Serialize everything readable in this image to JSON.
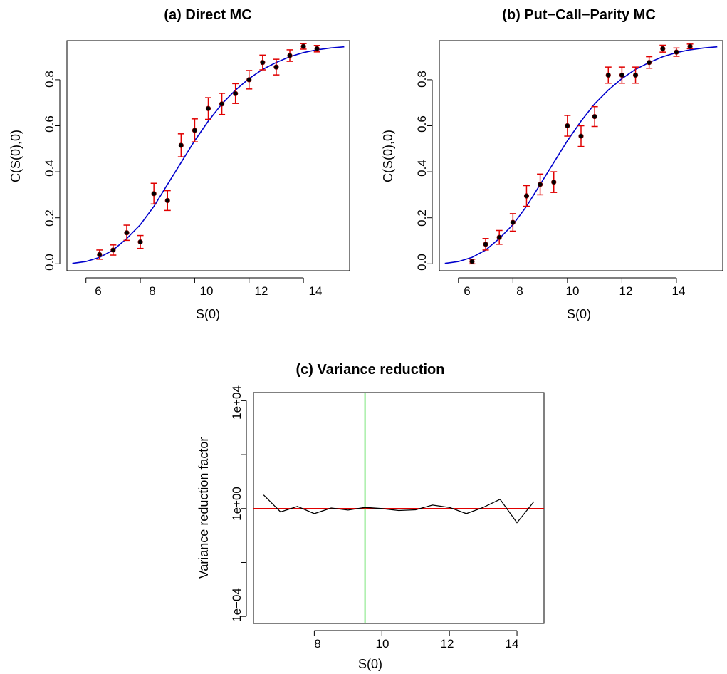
{
  "chart_data": [
    {
      "type": "scatter",
      "title": "(a) Direct MC",
      "xlabel": "S(0)",
      "ylabel": "C(S(0),0)",
      "xlim": [
        5.3,
        15.7
      ],
      "ylim": [
        -0.03,
        0.97
      ],
      "xticks": [
        6,
        8,
        10,
        12,
        14
      ],
      "yticks": [
        0.0,
        0.2,
        0.4,
        0.6,
        0.8
      ],
      "xtick_labels": [
        "6",
        "8",
        "10",
        "12",
        "14"
      ],
      "ytick_labels": [
        "0.0",
        "0.2",
        "0.4",
        "0.6",
        "0.8"
      ],
      "grid": false,
      "colors": {
        "points": "#000000",
        "errorbars": "#e00000",
        "curve": "#0000cc"
      },
      "x": [
        6.5,
        7.0,
        7.5,
        8.0,
        8.5,
        9.0,
        9.5,
        10.0,
        10.5,
        11.0,
        11.5,
        12.0,
        12.5,
        13.0,
        13.5,
        14.0,
        14.5
      ],
      "y": [
        0.04,
        0.06,
        0.135,
        0.095,
        0.305,
        0.275,
        0.515,
        0.58,
        0.675,
        0.695,
        0.74,
        0.8,
        0.875,
        0.855,
        0.905,
        0.945,
        0.935
      ],
      "err": [
        0.02,
        0.022,
        0.033,
        0.028,
        0.045,
        0.043,
        0.05,
        0.05,
        0.047,
        0.046,
        0.043,
        0.04,
        0.032,
        0.034,
        0.025,
        0.012,
        0.014
      ],
      "curve": {
        "x": [
          5.5,
          6.0,
          6.5,
          7.0,
          7.5,
          8.0,
          8.5,
          9.0,
          9.5,
          10.0,
          10.5,
          11.0,
          11.5,
          12.0,
          12.5,
          13.0,
          13.5,
          14.0,
          14.5,
          15.0,
          15.5
        ],
        "y": [
          0.002,
          0.01,
          0.028,
          0.06,
          0.11,
          0.17,
          0.25,
          0.345,
          0.44,
          0.535,
          0.62,
          0.695,
          0.755,
          0.805,
          0.845,
          0.875,
          0.9,
          0.918,
          0.93,
          0.938,
          0.943
        ]
      }
    },
    {
      "type": "scatter",
      "title": "(b) Put−Call−Parity MC",
      "xlabel": "S(0)",
      "ylabel": "C(S(0),0)",
      "xlim": [
        5.3,
        15.7
      ],
      "ylim": [
        -0.03,
        0.97
      ],
      "xticks": [
        6,
        8,
        10,
        12,
        14
      ],
      "yticks": [
        0.0,
        0.2,
        0.4,
        0.6,
        0.8
      ],
      "xtick_labels": [
        "6",
        "8",
        "10",
        "12",
        "14"
      ],
      "ytick_labels": [
        "0.0",
        "0.2",
        "0.4",
        "0.6",
        "0.8"
      ],
      "grid": false,
      "colors": {
        "points": "#000000",
        "errorbars": "#e00000",
        "curve": "#0000cc"
      },
      "x": [
        6.5,
        7.0,
        7.5,
        8.0,
        8.5,
        9.0,
        9.5,
        10.0,
        10.5,
        11.0,
        11.5,
        12.0,
        12.5,
        13.0,
        13.5,
        14.0,
        14.5
      ],
      "y": [
        0.01,
        0.085,
        0.115,
        0.18,
        0.295,
        0.345,
        0.355,
        0.6,
        0.555,
        0.64,
        0.82,
        0.82,
        0.82,
        0.875,
        0.935,
        0.92,
        0.945
      ],
      "err": [
        0.01,
        0.025,
        0.03,
        0.038,
        0.045,
        0.045,
        0.045,
        0.045,
        0.045,
        0.043,
        0.035,
        0.035,
        0.035,
        0.025,
        0.015,
        0.018,
        0.01
      ],
      "curve": {
        "x": [
          5.5,
          6.0,
          6.5,
          7.0,
          7.5,
          8.0,
          8.5,
          9.0,
          9.5,
          10.0,
          10.5,
          11.0,
          11.5,
          12.0,
          12.5,
          13.0,
          13.5,
          14.0,
          14.5,
          15.0,
          15.5
        ],
        "y": [
          0.002,
          0.01,
          0.028,
          0.06,
          0.11,
          0.17,
          0.25,
          0.345,
          0.44,
          0.535,
          0.62,
          0.695,
          0.755,
          0.805,
          0.845,
          0.875,
          0.9,
          0.918,
          0.93,
          0.938,
          0.943
        ]
      }
    },
    {
      "type": "line",
      "title": "(c) Variance reduction",
      "xlabel": "S(0)",
      "ylabel": "Variance reduction factor",
      "log_y": true,
      "xlim": [
        6.2,
        14.8
      ],
      "ylim": [
        5.5e-05,
        20000
      ],
      "xticks": [
        8,
        10,
        12,
        14
      ],
      "xtick_labels": [
        "8",
        "10",
        "12",
        "14"
      ],
      "yticks": [
        0.0001,
        1,
        10000
      ],
      "ytick_minor": [
        0.01,
        100
      ],
      "ytick_labels": [
        "1e−04",
        "1e+00",
        "1e+04"
      ],
      "grid": false,
      "colors": {
        "series": "#000000",
        "hline": "#e00000",
        "vline": "#00cc00"
      },
      "series": [
        {
          "x": [
            6.5,
            7.0,
            7.5,
            8.0,
            8.5,
            9.0,
            9.5,
            10.0,
            10.5,
            11.0,
            11.5,
            12.0,
            12.5,
            13.0,
            13.5,
            14.0,
            14.5
          ],
          "values": [
            3.2,
            0.75,
            1.2,
            0.65,
            1.05,
            0.88,
            1.1,
            1.0,
            0.85,
            0.9,
            1.35,
            1.1,
            0.65,
            1.1,
            2.2,
            0.3,
            1.8
          ]
        }
      ],
      "hline": 1,
      "vline": 9.5
    }
  ]
}
